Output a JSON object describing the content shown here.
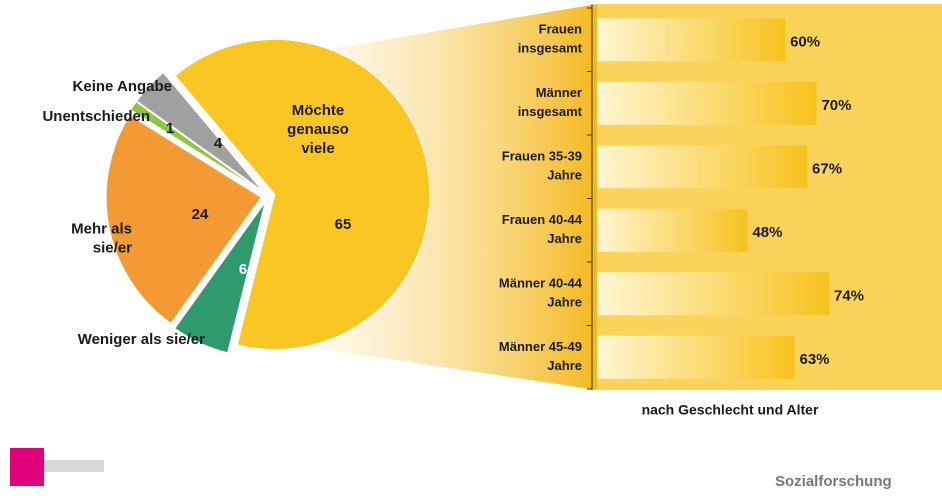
{
  "chart_data": [
    {
      "type": "pie",
      "categories": [
        "Möchte\ngenauso\nviele",
        "Weniger als sie/er",
        "Mehr als\nsie/er",
        "Unentschieden",
        "Keine Angabe"
      ],
      "values": [
        65,
        6,
        24,
        1,
        4
      ],
      "colors": [
        "#f9c623",
        "#2e9a6e",
        "#f39a35",
        "#8dc63f",
        "#a0a0a0"
      ]
    },
    {
      "type": "bar",
      "categories": [
        "Frauen\ninsgesamt",
        "Männer\ninsgesamt",
        "Frauen 35-39\nJahre",
        "Frauen 40-44\nJahre",
        "Männer 40-44\nJahre",
        "Männer 45-49\nJahre"
      ],
      "values": [
        60,
        70,
        67,
        48,
        74,
        63
      ],
      "value_labels": [
        "60%",
        "70%",
        "67%",
        "48%",
        "74%",
        "63%"
      ],
      "xlabel": "nach Geschlecht und Alter",
      "orientation": "horizontal"
    }
  ],
  "footer": {
    "source": "Sozialforschung"
  }
}
